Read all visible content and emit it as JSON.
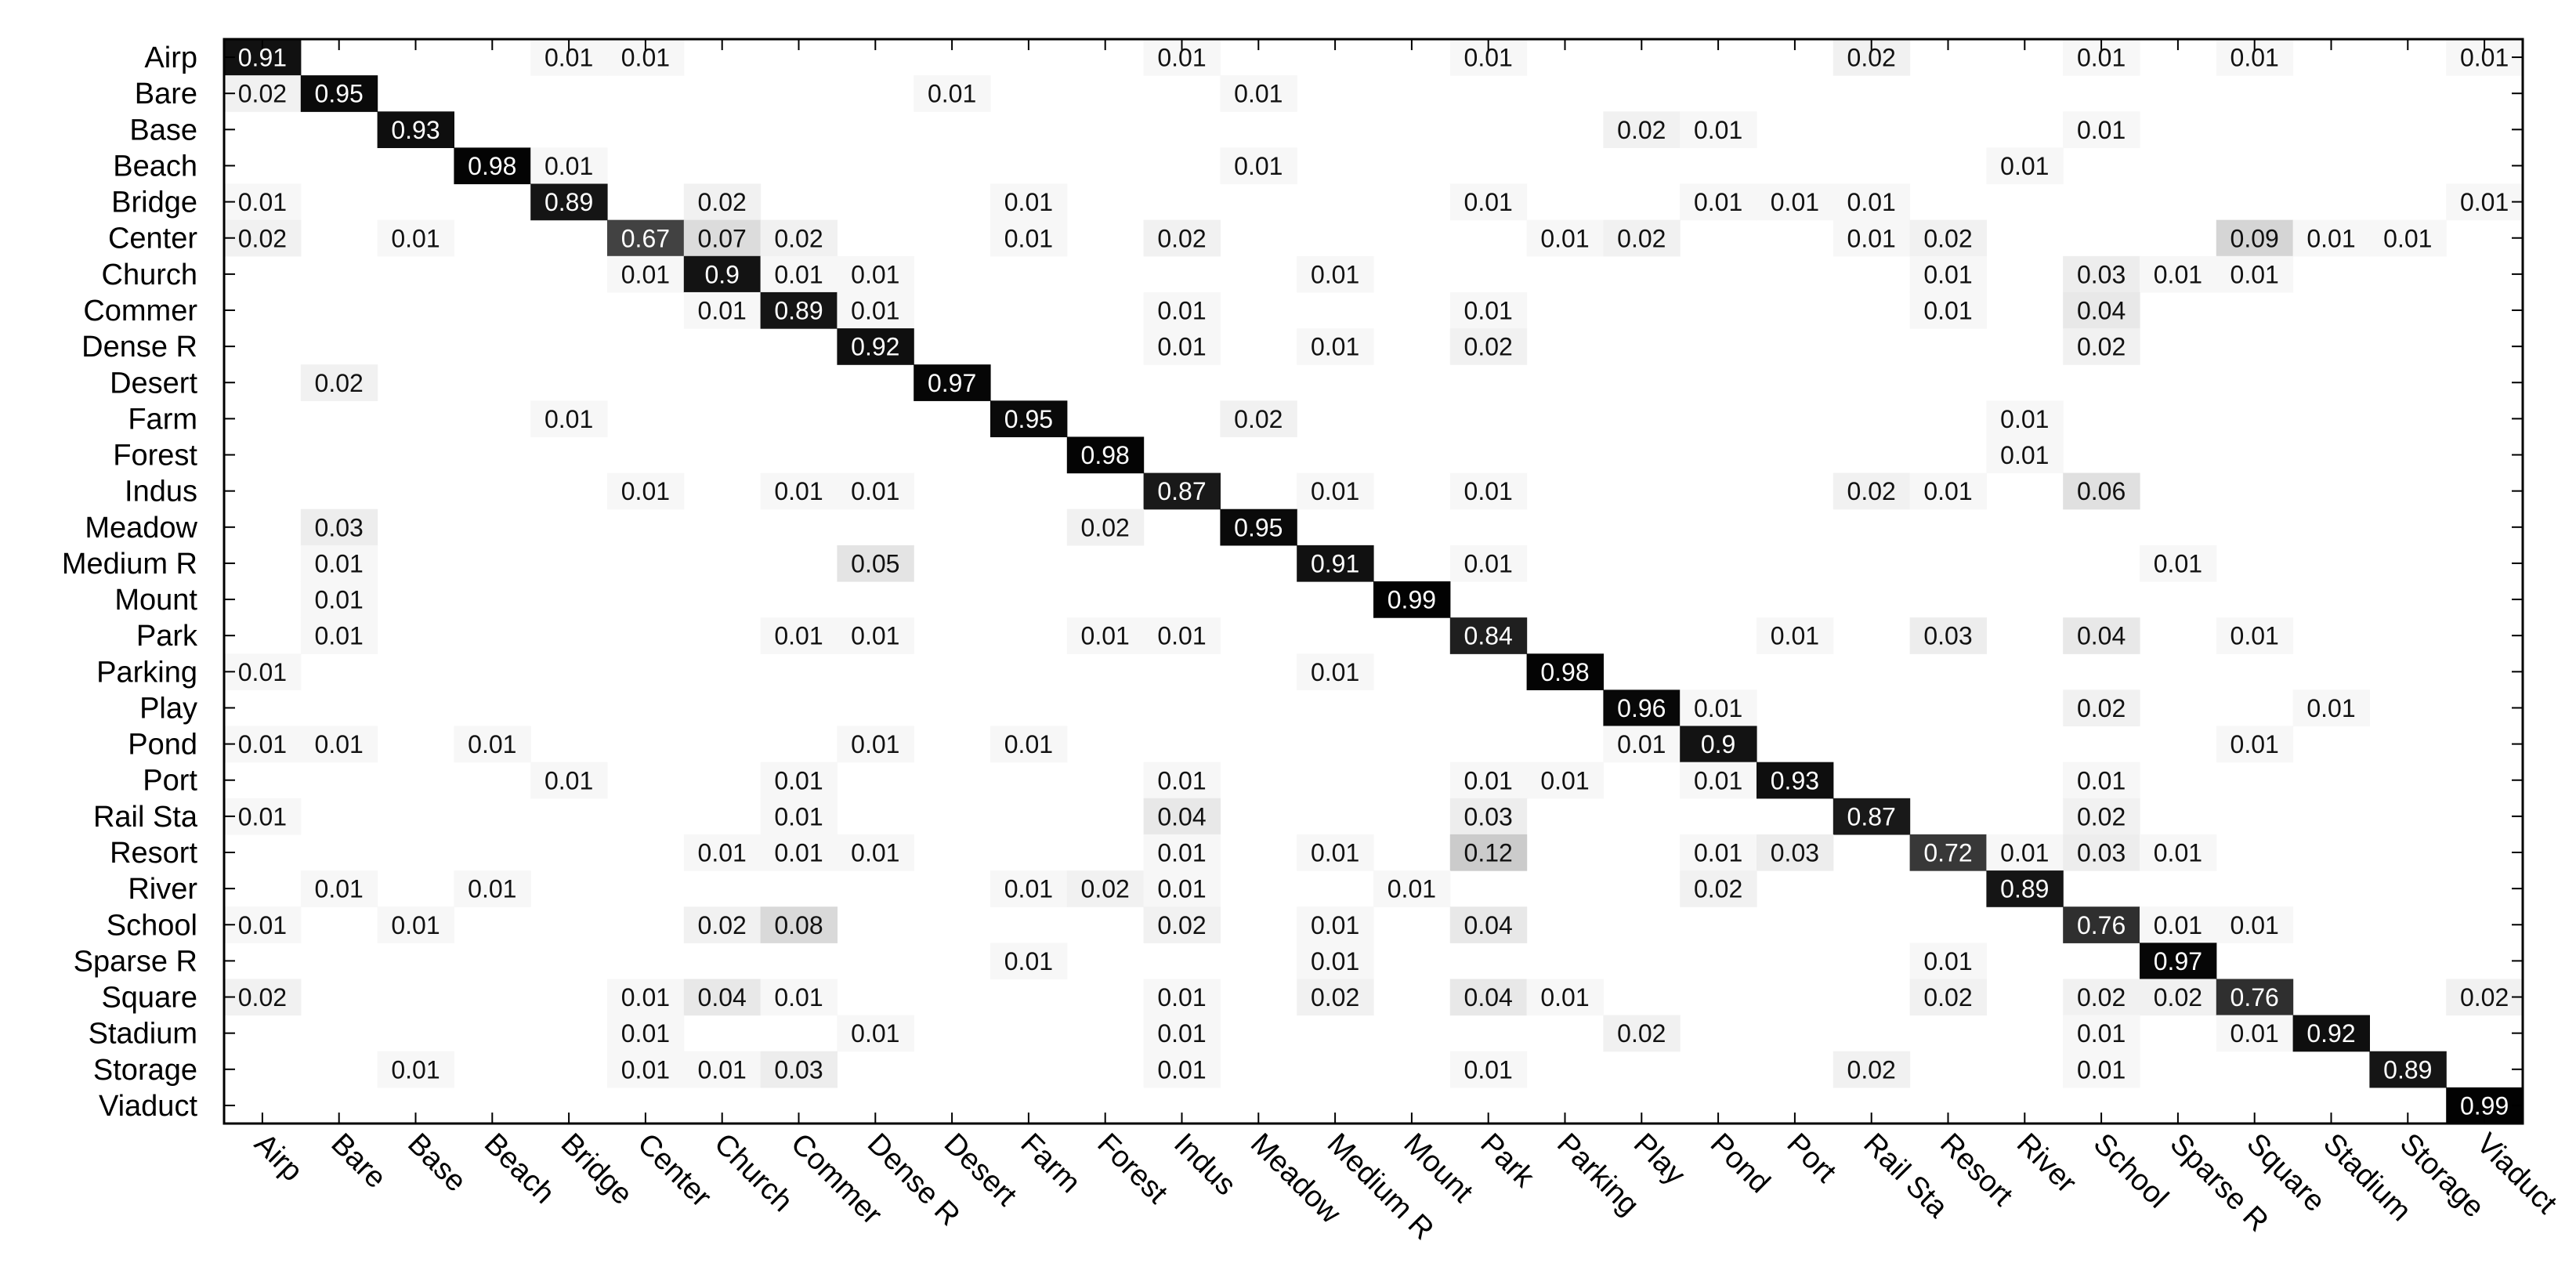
{
  "chart_data": {
    "type": "heatmap",
    "title": "",
    "xlabel": "",
    "ylabel": "",
    "colormap": "white-to-black (higher value = darker cell, white text on dark cells)",
    "labels": [
      "Airp",
      "Bare",
      "Base",
      "Beach",
      "Bridge",
      "Center",
      "Church",
      "Commer",
      "Dense R",
      "Desert",
      "Farm",
      "Forest",
      "Indus",
      "Meadow",
      "Medium R",
      "Mount",
      "Park",
      "Parking",
      "Play",
      "Pond",
      "Port",
      "Rail Sta",
      "Resort",
      "River",
      "School",
      "Sparse R",
      "Square",
      "Stadium",
      "Storage",
      "Viaduct"
    ],
    "matrix": [
      [
        0.91,
        0,
        0,
        0,
        0.01,
        0.01,
        0,
        0,
        0,
        0,
        0,
        0,
        0.01,
        0,
        0,
        0,
        0.01,
        0,
        0,
        0,
        0,
        0.02,
        0,
        0,
        0.01,
        0,
        0.01,
        0,
        0,
        0.01
      ],
      [
        0.02,
        0.95,
        0,
        0,
        0,
        0,
        0,
        0,
        0,
        0.01,
        0,
        0,
        0,
        0.01,
        0,
        0,
        0,
        0,
        0,
        0,
        0,
        0,
        0,
        0,
        0,
        0,
        0,
        0,
        0,
        0
      ],
      [
        0,
        0,
        0.93,
        0,
        0,
        0,
        0,
        0,
        0,
        0,
        0,
        0,
        0,
        0,
        0,
        0,
        0,
        0,
        0.02,
        0.01,
        0,
        0,
        0,
        0,
        0.01,
        0,
        0,
        0,
        0,
        0
      ],
      [
        0,
        0,
        0,
        0.98,
        0.01,
        0,
        0,
        0,
        0,
        0,
        0,
        0,
        0,
        0.01,
        0,
        0,
        0,
        0,
        0,
        0,
        0,
        0,
        0,
        0.01,
        0,
        0,
        0,
        0,
        0,
        0
      ],
      [
        0.01,
        0,
        0,
        0,
        0.89,
        0,
        0.02,
        0,
        0,
        0,
        0.01,
        0,
        0,
        0,
        0,
        0,
        0.01,
        0,
        0,
        0.01,
        0.01,
        0.01,
        0,
        0,
        0,
        0,
        0,
        0,
        0,
        0.01
      ],
      [
        0.02,
        0,
        0.01,
        0,
        0,
        0.67,
        0.07,
        0.02,
        0,
        0,
        0.01,
        0,
        0.02,
        0,
        0,
        0,
        0,
        0.01,
        0.02,
        0,
        0,
        0.01,
        0.02,
        0,
        0,
        0,
        0.09,
        0.01,
        0.01,
        0
      ],
      [
        0,
        0,
        0,
        0,
        0,
        0.01,
        0.9,
        0.01,
        0.01,
        0,
        0,
        0,
        0,
        0,
        0.01,
        0,
        0,
        0,
        0,
        0,
        0,
        0,
        0.01,
        0,
        0.03,
        0.01,
        0.01,
        0,
        0,
        0
      ],
      [
        0,
        0,
        0,
        0,
        0,
        0,
        0.01,
        0.89,
        0.01,
        0,
        0,
        0,
        0.01,
        0,
        0,
        0,
        0.01,
        0,
        0,
        0,
        0,
        0,
        0.01,
        0,
        0.04,
        0,
        0,
        0,
        0,
        0
      ],
      [
        0,
        0,
        0,
        0,
        0,
        0,
        0,
        0,
        0.92,
        0,
        0,
        0,
        0.01,
        0,
        0.01,
        0,
        0.02,
        0,
        0,
        0,
        0,
        0,
        0,
        0,
        0.02,
        0,
        0,
        0,
        0,
        0
      ],
      [
        0,
        0.02,
        0,
        0,
        0,
        0,
        0,
        0,
        0,
        0.97,
        0,
        0,
        0,
        0,
        0,
        0,
        0,
        0,
        0,
        0,
        0,
        0,
        0,
        0,
        0,
        0,
        0,
        0,
        0,
        0
      ],
      [
        0,
        0,
        0,
        0,
        0.01,
        0,
        0,
        0,
        0,
        0,
        0.95,
        0,
        0,
        0.02,
        0,
        0,
        0,
        0,
        0,
        0,
        0,
        0,
        0,
        0.01,
        0,
        0,
        0,
        0,
        0,
        0
      ],
      [
        0,
        0,
        0,
        0,
        0,
        0,
        0,
        0,
        0,
        0,
        0,
        0.98,
        0,
        0,
        0,
        0,
        0,
        0,
        0,
        0,
        0,
        0,
        0,
        0.01,
        0,
        0,
        0,
        0,
        0,
        0
      ],
      [
        0,
        0,
        0,
        0,
        0,
        0.01,
        0,
        0.01,
        0.01,
        0,
        0,
        0,
        0.87,
        0,
        0.01,
        0,
        0.01,
        0,
        0,
        0,
        0,
        0.02,
        0.01,
        0,
        0.06,
        0,
        0,
        0,
        0,
        0
      ],
      [
        0,
        0.03,
        0,
        0,
        0,
        0,
        0,
        0,
        0,
        0,
        0,
        0.02,
        0,
        0.95,
        0,
        0,
        0,
        0,
        0,
        0,
        0,
        0,
        0,
        0,
        0,
        0,
        0,
        0,
        0,
        0
      ],
      [
        0,
        0.01,
        0,
        0,
        0,
        0,
        0,
        0,
        0.05,
        0,
        0,
        0,
        0,
        0,
        0.91,
        0,
        0.01,
        0,
        0,
        0,
        0,
        0,
        0,
        0,
        0,
        0.01,
        0,
        0,
        0,
        0
      ],
      [
        0,
        0.01,
        0,
        0,
        0,
        0,
        0,
        0,
        0,
        0,
        0,
        0,
        0,
        0,
        0,
        0.99,
        0,
        0,
        0,
        0,
        0,
        0,
        0,
        0,
        0,
        0,
        0,
        0,
        0,
        0
      ],
      [
        0,
        0.01,
        0,
        0,
        0,
        0,
        0,
        0.01,
        0.01,
        0,
        0,
        0.01,
        0.01,
        0,
        0,
        0,
        0.84,
        0,
        0,
        0,
        0.01,
        0,
        0.03,
        0,
        0.04,
        0,
        0.01,
        0,
        0,
        0
      ],
      [
        0.01,
        0,
        0,
        0,
        0,
        0,
        0,
        0,
        0,
        0,
        0,
        0,
        0,
        0,
        0.01,
        0,
        0,
        0.98,
        0,
        0,
        0,
        0,
        0,
        0,
        0,
        0,
        0,
        0,
        0,
        0
      ],
      [
        0,
        0,
        0,
        0,
        0,
        0,
        0,
        0,
        0,
        0,
        0,
        0,
        0,
        0,
        0,
        0,
        0,
        0,
        0.96,
        0.01,
        0,
        0,
        0,
        0,
        0.02,
        0,
        0,
        0.01,
        0,
        0
      ],
      [
        0.01,
        0.01,
        0,
        0.01,
        0,
        0,
        0,
        0,
        0.01,
        0,
        0.01,
        0,
        0,
        0,
        0,
        0,
        0,
        0,
        0.01,
        0.9,
        0,
        0,
        0,
        0,
        0,
        0,
        0.01,
        0,
        0,
        0
      ],
      [
        0,
        0,
        0,
        0,
        0.01,
        0,
        0,
        0.01,
        0,
        0,
        0,
        0,
        0.01,
        0,
        0,
        0,
        0.01,
        0.01,
        0,
        0.01,
        0.93,
        0,
        0,
        0,
        0.01,
        0,
        0,
        0,
        0,
        0
      ],
      [
        0.01,
        0,
        0,
        0,
        0,
        0,
        0,
        0.01,
        0,
        0,
        0,
        0,
        0.04,
        0,
        0,
        0,
        0.03,
        0,
        0,
        0,
        0,
        0.87,
        0,
        0,
        0.02,
        0,
        0,
        0,
        0,
        0
      ],
      [
        0,
        0,
        0,
        0,
        0,
        0,
        0.01,
        0.01,
        0.01,
        0,
        0,
        0,
        0.01,
        0,
        0.01,
        0,
        0.12,
        0,
        0,
        0.01,
        0.03,
        0,
        0.72,
        0.01,
        0.03,
        0.01,
        0,
        0,
        0,
        0
      ],
      [
        0,
        0.01,
        0,
        0.01,
        0,
        0,
        0,
        0,
        0,
        0,
        0.01,
        0.02,
        0.01,
        0,
        0,
        0.01,
        0,
        0,
        0,
        0.02,
        0,
        0,
        0,
        0.89,
        0,
        0,
        0,
        0,
        0,
        0
      ],
      [
        0.01,
        0,
        0.01,
        0,
        0,
        0,
        0.02,
        0.08,
        0,
        0,
        0,
        0,
        0.02,
        0,
        0.01,
        0,
        0.04,
        0,
        0,
        0,
        0,
        0,
        0,
        0,
        0.76,
        0.01,
        0.01,
        0,
        0,
        0
      ],
      [
        0,
        0,
        0,
        0,
        0,
        0,
        0,
        0,
        0,
        0,
        0.01,
        0,
        0,
        0,
        0.01,
        0,
        0,
        0,
        0,
        0,
        0,
        0,
        0.01,
        0,
        0,
        0.97,
        0,
        0,
        0,
        0
      ],
      [
        0.02,
        0,
        0,
        0,
        0,
        0.01,
        0.04,
        0.01,
        0,
        0,
        0,
        0,
        0.01,
        0,
        0.02,
        0,
        0.04,
        0.01,
        0,
        0,
        0,
        0,
        0.02,
        0,
        0.02,
        0.02,
        0.76,
        0,
        0,
        0.02
      ],
      [
        0,
        0,
        0,
        0,
        0,
        0.01,
        0,
        0,
        0.01,
        0,
        0,
        0,
        0.01,
        0,
        0,
        0,
        0,
        0,
        0.02,
        0,
        0,
        0,
        0,
        0,
        0.01,
        0,
        0.01,
        0.92,
        0,
        0
      ],
      [
        0,
        0,
        0.01,
        0,
        0,
        0.01,
        0.01,
        0.03,
        0,
        0,
        0,
        0,
        0.01,
        0,
        0,
        0,
        0.01,
        0,
        0,
        0,
        0,
        0.02,
        0,
        0,
        0.01,
        0,
        0,
        0,
        0.89,
        0
      ],
      [
        0,
        0,
        0,
        0,
        0,
        0,
        0,
        0,
        0,
        0,
        0,
        0,
        0,
        0,
        0,
        0,
        0,
        0,
        0,
        0,
        0,
        0,
        0,
        0,
        0,
        0,
        0,
        0,
        0,
        0.99
      ]
    ]
  }
}
